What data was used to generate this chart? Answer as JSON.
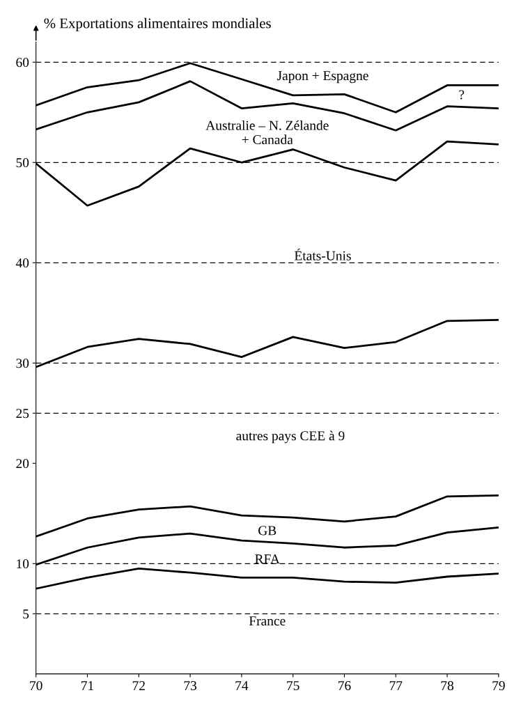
{
  "chart_data": {
    "type": "line",
    "ylabel": "% Exportations alimentaires mondiales",
    "x": [
      70,
      71,
      72,
      73,
      74,
      75,
      76,
      77,
      78,
      79
    ],
    "series": [
      {
        "color": "#000000",
        "values": [
          55.7,
          57.5,
          58.2,
          59.9,
          58.3,
          56.7,
          56.8,
          55.0,
          57.7,
          57.7
        ]
      },
      {
        "color": "#000000",
        "values": [
          53.3,
          55.0,
          56.0,
          58.1,
          55.4,
          55.9,
          54.9,
          53.2,
          55.6,
          55.4
        ]
      },
      {
        "color": "#000000",
        "values": [
          49.9,
          45.7,
          47.6,
          51.4,
          50.0,
          51.3,
          49.5,
          48.2,
          52.1,
          51.8
        ]
      },
      {
        "color": "#000000",
        "values": [
          29.6,
          31.6,
          32.4,
          31.9,
          30.6,
          32.6,
          31.5,
          32.1,
          34.2,
          34.3
        ]
      },
      {
        "color": "#000000",
        "values": [
          12.7,
          14.5,
          15.4,
          15.7,
          14.8,
          14.6,
          14.2,
          14.7,
          16.7,
          16.8
        ]
      },
      {
        "color": "#000000",
        "values": [
          9.9,
          11.6,
          12.6,
          13.0,
          12.3,
          12.0,
          11.6,
          11.8,
          13.1,
          13.6
        ]
      },
      {
        "color": "#000000",
        "values": [
          7.5,
          8.6,
          9.5,
          9.1,
          8.6,
          8.6,
          8.2,
          8.1,
          8.7,
          9.0
        ]
      }
    ],
    "annotations": [
      "Japon + Espagne",
      "?",
      "Australie – N. Zélande\n+ Canada",
      "États-Unis",
      "autres pays CEE à 9",
      "GB",
      "RFA",
      "France"
    ],
    "ref_lines": [
      {
        "axis": "y",
        "value": 60,
        "line_style": "dashed",
        "color": "#000000"
      },
      {
        "axis": "y",
        "value": 50,
        "line_style": "dashed",
        "color": "#000000"
      },
      {
        "axis": "y",
        "value": 40,
        "line_style": "dashed",
        "color": "#000000"
      },
      {
        "axis": "y",
        "value": 30,
        "line_style": "dashed",
        "color": "#000000"
      },
      {
        "axis": "y",
        "value": 25,
        "line_style": "dashed",
        "color": "#000000"
      },
      {
        "axis": "y",
        "value": 10,
        "line_style": "dashed",
        "color": "#000000"
      },
      {
        "axis": "y",
        "value": 5,
        "line_style": "dashed",
        "color": "#000000"
      }
    ],
    "xlim": [
      70,
      79
    ],
    "xticks": [
      70,
      71,
      72,
      73,
      74,
      75,
      76,
      77,
      78,
      79
    ],
    "ylim": [
      -1,
      62
    ],
    "yticks": [
      5,
      10,
      20,
      25,
      30,
      40,
      50,
      60
    ],
    "grid": false,
    "legend": false,
    "marker": "none",
    "line_style": "solid"
  }
}
